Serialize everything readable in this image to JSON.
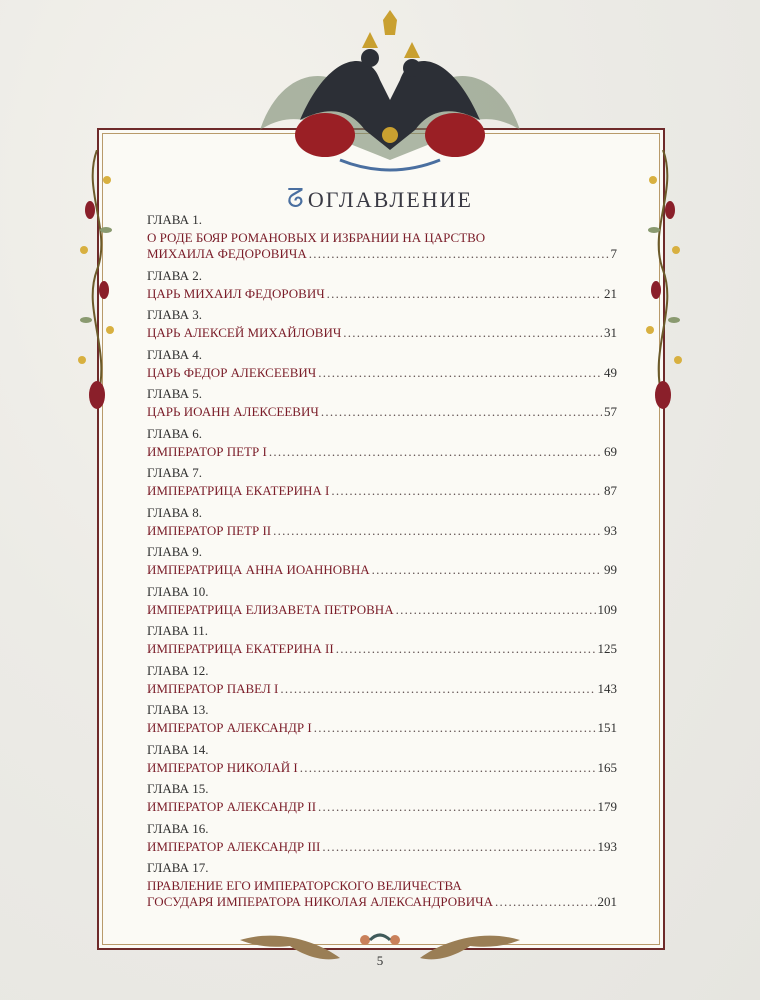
{
  "page": {
    "title": "ОГЛАВЛЕНИЕ",
    "page_number": "5",
    "colors": {
      "title_text": "#7a1c28",
      "label_text": "#2f2f2f",
      "frame": "#6e2a2a"
    },
    "chapters": [
      {
        "label": "ГЛАВА 1.",
        "title_lines": [
          "О РОДЕ БОЯР РОМАНОВЫХ И ИЗБРАНИИ НА ЦАРСТВО",
          "МИХАИЛА ФЕДОРОВИЧА"
        ],
        "page": "7"
      },
      {
        "label": "ГЛАВА 2.",
        "title_lines": [
          "ЦАРЬ МИХАИЛ ФЕДОРОВИЧ"
        ],
        "page": "21"
      },
      {
        "label": "ГЛАВА 3.",
        "title_lines": [
          "ЦАРЬ АЛЕКСЕЙ МИХАЙЛОВИЧ"
        ],
        "page": "31"
      },
      {
        "label": "ГЛАВА 4.",
        "title_lines": [
          "ЦАРЬ ФЕДОР АЛЕКСЕЕВИЧ"
        ],
        "page": "49"
      },
      {
        "label": "ГЛАВА 5.",
        "title_lines": [
          "ЦАРЬ ИОАНН АЛЕКСЕЕВИЧ"
        ],
        "page": "57"
      },
      {
        "label": "ГЛАВА 6.",
        "title_lines": [
          "ИМПЕРАТОР ПЕТР I"
        ],
        "page": "69"
      },
      {
        "label": "ГЛАВА 7.",
        "title_lines": [
          "ИМПЕРАТРИЦА ЕКАТЕРИНА I"
        ],
        "page": "87"
      },
      {
        "label": "ГЛАВА 8.",
        "title_lines": [
          "ИМПЕРАТОР ПЕТР II"
        ],
        "page": "93"
      },
      {
        "label": "ГЛАВА 9.",
        "title_lines": [
          "ИМПЕРАТРИЦА АННА ИОАННОВНА"
        ],
        "page": "99"
      },
      {
        "label": "ГЛАВА 10.",
        "title_lines": [
          "ИМПЕРАТРИЦА ЕЛИЗАВЕТА ПЕТРОВНА"
        ],
        "page": "109"
      },
      {
        "label": "ГЛАВА 11.",
        "title_lines": [
          "ИМПЕРАТРИЦА ЕКАТЕРИНА II"
        ],
        "page": "125"
      },
      {
        "label": "ГЛАВА 12.",
        "title_lines": [
          "ИМПЕРАТОР ПАВЕЛ I"
        ],
        "page": "143"
      },
      {
        "label": "ГЛАВА 13.",
        "title_lines": [
          "ИМПЕРАТОР АЛЕКСАНДР I"
        ],
        "page": "151"
      },
      {
        "label": "ГЛАВА 14.",
        "title_lines": [
          "ИМПЕРАТОР НИКОЛАЙ I"
        ],
        "page": "165"
      },
      {
        "label": "ГЛАВА 15.",
        "title_lines": [
          "ИМПЕРАТОР АЛЕКСАНДР II"
        ],
        "page": "179"
      },
      {
        "label": "ГЛАВА 16.",
        "title_lines": [
          "ИМПЕРАТОР АЛЕКСАНДР III"
        ],
        "page": "193"
      },
      {
        "label": "ГЛАВА 17.",
        "title_lines": [
          "ПРАВЛЕНИЕ ЕГО ИМПЕРАТОРСКОГО ВЕЛИЧЕСТВА",
          "ГОСУДАРЯ ИМПЕРАТОРА НИКОЛАЯ АЛЕКСАНДРОВИЧА"
        ],
        "page": "201"
      }
    ]
  }
}
